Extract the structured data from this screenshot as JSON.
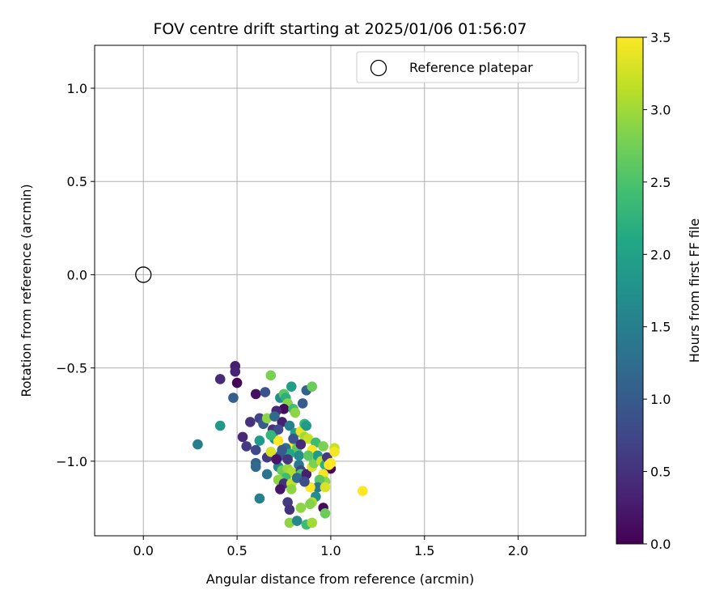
{
  "chart_data": {
    "type": "scatter",
    "title": "FOV centre drift starting at 2025/01/06 01:56:07",
    "xlabel": "Angular distance from reference (arcmin)",
    "ylabel": "Rotation from reference (arcmin)",
    "xlim": [
      -0.26,
      2.36
    ],
    "ylim": [
      -1.4,
      1.23
    ],
    "x_ticks": [
      0.0,
      0.5,
      1.0,
      1.5,
      2.0
    ],
    "x_tick_labels": [
      "0.0",
      "0.5",
      "1.0",
      "1.5",
      "2.0"
    ],
    "y_ticks": [
      -1.0,
      -0.5,
      0.0,
      0.5,
      1.0
    ],
    "y_tick_labels": [
      "−1.0",
      "−0.5",
      "0.0",
      "0.5",
      "1.0"
    ],
    "grid": true,
    "legend": {
      "position": "top-right",
      "entries": [
        {
          "label": "Reference platepar",
          "marker": "open-circle"
        }
      ]
    },
    "reference_point": {
      "x": 0.0,
      "y": 0.0
    },
    "colorbar": {
      "label": "Hours from first FF file",
      "colormap": "viridis",
      "range": [
        0.0,
        3.5
      ],
      "ticks": [
        0.0,
        0.5,
        1.0,
        1.5,
        2.0,
        2.5,
        3.0,
        3.5
      ],
      "tick_labels": [
        "0.0",
        "0.5",
        "1.0",
        "1.5",
        "2.0",
        "2.5",
        "3.0",
        "3.5"
      ]
    },
    "series": [
      {
        "points": [
          {
            "x": 0.49,
            "y": -0.49,
            "c": 0.3
          },
          {
            "x": 0.49,
            "y": -0.52,
            "c": 0.35
          },
          {
            "x": 0.5,
            "y": -0.58,
            "c": 0.05
          },
          {
            "x": 0.41,
            "y": -0.56,
            "c": 0.4
          },
          {
            "x": 0.48,
            "y": -0.66,
            "c": 1.05
          },
          {
            "x": 0.41,
            "y": -0.81,
            "c": 1.85
          },
          {
            "x": 0.29,
            "y": -0.91,
            "c": 1.45
          },
          {
            "x": 0.53,
            "y": -0.87,
            "c": 0.4
          },
          {
            "x": 0.6,
            "y": -0.64,
            "c": 0.15
          },
          {
            "x": 0.65,
            "y": -0.63,
            "c": 0.9
          },
          {
            "x": 0.68,
            "y": -0.54,
            "c": 2.8
          },
          {
            "x": 0.57,
            "y": -0.79,
            "c": 0.5
          },
          {
            "x": 0.62,
            "y": -0.77,
            "c": 0.7
          },
          {
            "x": 0.64,
            "y": -0.8,
            "c": 1.0
          },
          {
            "x": 0.66,
            "y": -0.77,
            "c": 2.9
          },
          {
            "x": 0.62,
            "y": -0.89,
            "c": 1.9
          },
          {
            "x": 0.55,
            "y": -0.92,
            "c": 0.6
          },
          {
            "x": 0.6,
            "y": -0.94,
            "c": 0.75
          },
          {
            "x": 0.6,
            "y": -1.01,
            "c": 1.1
          },
          {
            "x": 0.6,
            "y": -1.03,
            "c": 1.2
          },
          {
            "x": 0.66,
            "y": -0.98,
            "c": 0.6
          },
          {
            "x": 0.66,
            "y": -1.07,
            "c": 1.35
          },
          {
            "x": 0.68,
            "y": -0.95,
            "c": 3.3
          },
          {
            "x": 0.62,
            "y": -1.2,
            "c": 1.5
          },
          {
            "x": 0.69,
            "y": -0.83,
            "c": 0.5
          },
          {
            "x": 0.7,
            "y": -0.88,
            "c": 1.8
          },
          {
            "x": 0.72,
            "y": -0.89,
            "c": 3.5
          },
          {
            "x": 0.73,
            "y": -0.66,
            "c": 1.7
          },
          {
            "x": 0.75,
            "y": -0.64,
            "c": 2.6
          },
          {
            "x": 0.76,
            "y": -0.66,
            "c": 2.2
          },
          {
            "x": 0.77,
            "y": -0.69,
            "c": 2.85
          },
          {
            "x": 0.75,
            "y": -0.72,
            "c": 0.1
          },
          {
            "x": 0.79,
            "y": -0.6,
            "c": 1.95
          },
          {
            "x": 0.8,
            "y": -0.72,
            "c": 2.4
          },
          {
            "x": 0.81,
            "y": -0.74,
            "c": 2.9
          },
          {
            "x": 0.87,
            "y": -0.62,
            "c": 1.1
          },
          {
            "x": 0.9,
            "y": -0.6,
            "c": 2.7
          },
          {
            "x": 0.85,
            "y": -0.69,
            "c": 1.0
          },
          {
            "x": 0.74,
            "y": -0.79,
            "c": 0.3
          },
          {
            "x": 0.72,
            "y": -0.83,
            "c": 0.8
          },
          {
            "x": 0.78,
            "y": -0.81,
            "c": 1.5
          },
          {
            "x": 0.81,
            "y": -0.85,
            "c": 2.0
          },
          {
            "x": 0.84,
            "y": -0.84,
            "c": 3.4
          },
          {
            "x": 0.86,
            "y": -0.8,
            "c": 2.3
          },
          {
            "x": 0.87,
            "y": -0.81,
            "c": 1.9
          },
          {
            "x": 0.86,
            "y": -0.87,
            "c": 3.0
          },
          {
            "x": 0.88,
            "y": -0.88,
            "c": 3.2
          },
          {
            "x": 0.8,
            "y": -0.92,
            "c": 3.6
          },
          {
            "x": 0.82,
            "y": -0.93,
            "c": 2.6
          },
          {
            "x": 0.76,
            "y": -0.93,
            "c": 1.3
          },
          {
            "x": 0.78,
            "y": -0.96,
            "c": 2.1
          },
          {
            "x": 0.73,
            "y": -0.97,
            "c": 0.9
          },
          {
            "x": 0.72,
            "y": -1.03,
            "c": 1.6
          },
          {
            "x": 0.74,
            "y": -1.05,
            "c": 2.7
          },
          {
            "x": 0.77,
            "y": -1.04,
            "c": 2.95
          },
          {
            "x": 0.79,
            "y": -1.06,
            "c": 3.1
          },
          {
            "x": 0.76,
            "y": -1.09,
            "c": 2.4
          },
          {
            "x": 0.72,
            "y": -1.1,
            "c": 2.9
          },
          {
            "x": 0.75,
            "y": -1.12,
            "c": 0.5
          },
          {
            "x": 0.73,
            "y": -1.15,
            "c": 0.2
          },
          {
            "x": 0.79,
            "y": -1.12,
            "c": 3.2
          },
          {
            "x": 0.79,
            "y": -1.15,
            "c": 2.9
          },
          {
            "x": 0.83,
            "y": -1.02,
            "c": 1.4
          },
          {
            "x": 0.84,
            "y": -1.05,
            "c": 0.7
          },
          {
            "x": 0.85,
            "y": -1.09,
            "c": 3.4
          },
          {
            "x": 0.84,
            "y": -1.07,
            "c": 2.5
          },
          {
            "x": 0.87,
            "y": -1.07,
            "c": 0.3
          },
          {
            "x": 0.9,
            "y": -1.03,
            "c": 3.3
          },
          {
            "x": 0.91,
            "y": -1.01,
            "c": 2.8
          },
          {
            "x": 0.92,
            "y": -0.9,
            "c": 2.4
          },
          {
            "x": 0.9,
            "y": -0.94,
            "c": 3.5
          },
          {
            "x": 0.93,
            "y": -0.97,
            "c": 1.9
          },
          {
            "x": 0.96,
            "y": -0.92,
            "c": 2.8
          },
          {
            "x": 0.95,
            "y": -1.0,
            "c": 3.2
          },
          {
            "x": 0.97,
            "y": -1.02,
            "c": 2.2
          },
          {
            "x": 0.98,
            "y": -0.98,
            "c": 0.6
          },
          {
            "x": 1.0,
            "y": -1.04,
            "c": 0.1
          },
          {
            "x": 0.99,
            "y": -1.02,
            "c": 3.5
          },
          {
            "x": 0.96,
            "y": -1.07,
            "c": 3.45
          },
          {
            "x": 0.97,
            "y": -1.11,
            "c": 2.9
          },
          {
            "x": 0.94,
            "y": -1.1,
            "c": 2.6
          },
          {
            "x": 0.93,
            "y": -1.14,
            "c": 1.4
          },
          {
            "x": 0.89,
            "y": -1.14,
            "c": 3.5
          },
          {
            "x": 0.97,
            "y": -1.14,
            "c": 3.3
          },
          {
            "x": 0.92,
            "y": -1.19,
            "c": 1.7
          },
          {
            "x": 0.9,
            "y": -1.22,
            "c": 3.1
          },
          {
            "x": 0.89,
            "y": -1.23,
            "c": 2.85
          },
          {
            "x": 0.96,
            "y": -1.25,
            "c": 0.1
          },
          {
            "x": 0.97,
            "y": -1.28,
            "c": 2.7
          },
          {
            "x": 0.84,
            "y": -1.25,
            "c": 2.9
          },
          {
            "x": 0.77,
            "y": -1.22,
            "c": 0.6
          },
          {
            "x": 0.78,
            "y": -1.26,
            "c": 0.5
          },
          {
            "x": 0.78,
            "y": -1.33,
            "c": 2.9
          },
          {
            "x": 0.82,
            "y": -1.32,
            "c": 1.6
          },
          {
            "x": 0.87,
            "y": -1.34,
            "c": 2.4
          },
          {
            "x": 0.9,
            "y": -1.33,
            "c": 3.0
          },
          {
            "x": 1.02,
            "y": -0.93,
            "c": 3.2
          },
          {
            "x": 1.02,
            "y": -0.95,
            "c": 3.45
          },
          {
            "x": 1.0,
            "y": -1.01,
            "c": 3.6
          },
          {
            "x": 1.17,
            "y": -1.16,
            "c": 3.55
          },
          {
            "x": 0.71,
            "y": -0.73,
            "c": 0.4
          },
          {
            "x": 0.7,
            "y": -0.76,
            "c": 1.2
          },
          {
            "x": 0.68,
            "y": -0.86,
            "c": 2.3
          },
          {
            "x": 0.71,
            "y": -0.99,
            "c": 0.2
          },
          {
            "x": 0.74,
            "y": -0.94,
            "c": 1.0
          },
          {
            "x": 0.83,
            "y": -0.97,
            "c": 1.7
          },
          {
            "x": 0.82,
            "y": -1.09,
            "c": 1.2
          },
          {
            "x": 0.86,
            "y": -1.11,
            "c": 0.8
          },
          {
            "x": 0.88,
            "y": -0.97,
            "c": 2.6
          },
          {
            "x": 0.8,
            "y": -0.88,
            "c": 0.9
          },
          {
            "x": 0.84,
            "y": -0.91,
            "c": 0.4
          },
          {
            "x": 0.77,
            "y": -0.99,
            "c": 0.55
          }
        ]
      }
    ]
  }
}
